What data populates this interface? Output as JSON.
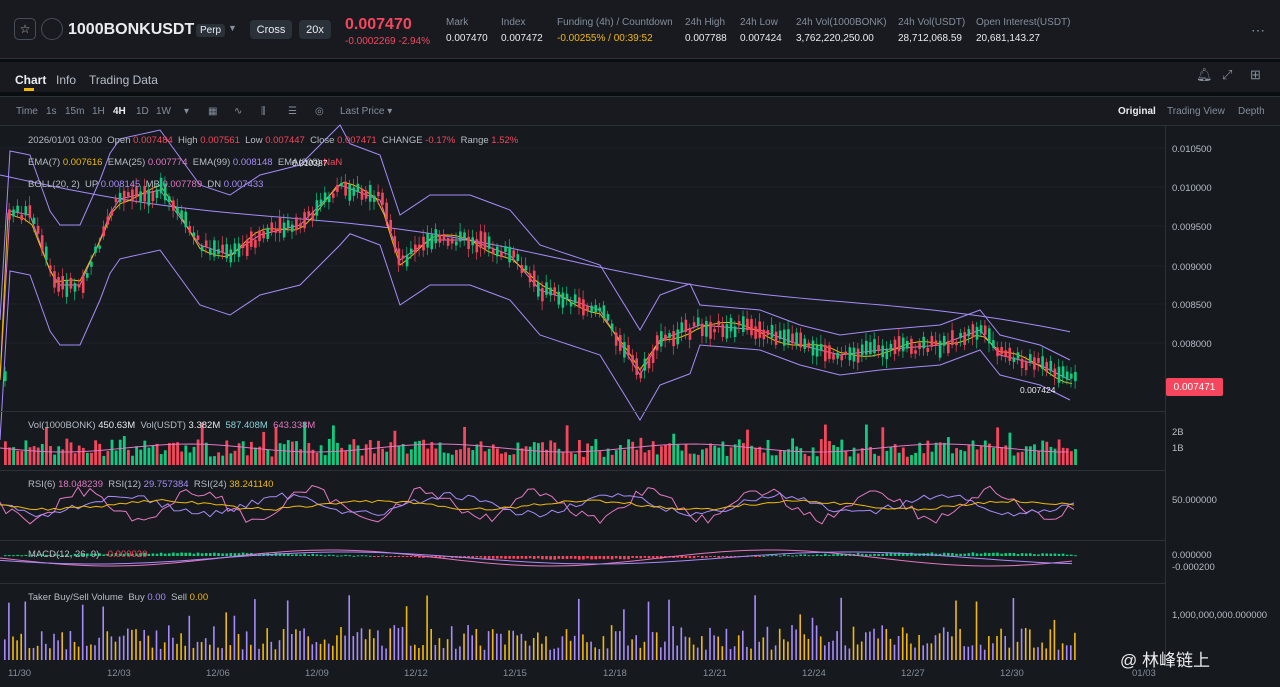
{
  "header": {
    "symbol": "1000BONKUSDT",
    "contract_type": "Perp",
    "margin_mode": "Cross",
    "leverage": "20x",
    "last_price": "0.007470",
    "change": "-0.0002269 -2.94%",
    "stats": [
      {
        "label": "Mark",
        "value": "0.007470"
      },
      {
        "label": "Index",
        "value": "0.007472"
      },
      {
        "label": "Funding (4h) / Countdown",
        "value": "-0.00255% / 00:39:52"
      },
      {
        "label": "24h High",
        "value": "0.007788"
      },
      {
        "label": "24h Low",
        "value": "0.007424"
      },
      {
        "label": "24h Vol(1000BONK)",
        "value": "3,762,220,250.00"
      },
      {
        "label": "24h Vol(USDT)",
        "value": "28,712,068.59"
      },
      {
        "label": "Open Interest(USDT)",
        "value": "20,681,143.27"
      }
    ]
  },
  "tabs": [
    "Chart",
    "Info",
    "Trading Data"
  ],
  "toolbar": {
    "label": "Time",
    "intervals": [
      "1s",
      "15m",
      "1H",
      "4H",
      "1D",
      "1W"
    ],
    "active_interval": "4H",
    "price_type": "Last Price",
    "views": [
      "Original",
      "Trading View",
      "Depth"
    ],
    "active_view": "Original"
  },
  "ohlc": {
    "date": "2026/01/01 03:00",
    "open_label": "Open",
    "open": "0.007484",
    "high_label": "High",
    "high": "0.007561",
    "low_label": "Low",
    "low": "0.007447",
    "close_label": "Close",
    "close": "0.007471",
    "change_label": "CHANGE",
    "change": "-0.17%",
    "range_label": "Range",
    "range": "1.52%"
  },
  "ema": {
    "ema7_label": "EMA(7)",
    "ema7": "0.007616",
    "ema25_label": "EMA(25)",
    "ema25": "0.007774",
    "ema99_label": "EMA(99)",
    "ema99": "0.008148",
    "ema200_label": "EMA(200)",
    "ema200": "NaN"
  },
  "boll": {
    "label": "BOLL(20, 2)",
    "up_label": "UP",
    "up": "0.008145",
    "mb_label": "MB",
    "mb": "0.007789",
    "dn_label": "DN",
    "dn": "0.007433"
  },
  "volume": {
    "label": "Vol(1000BONK)",
    "value": "450.63M",
    "usdt_label": "Vol(USDT)",
    "usdt": "3.382M",
    "ma1": "587.408M",
    "ma2": "643.338M",
    "axis": [
      "2B",
      "1B"
    ]
  },
  "rsi": {
    "rsi6_label": "RSI(6)",
    "rsi6": "18.048239",
    "rsi12_label": "RSI(12)",
    "rsi12": "29.757384",
    "rsi24_label": "RSI(24)",
    "rsi24": "38.241140",
    "axis": "50.000000"
  },
  "macd": {
    "label": "MACD(12, 26, 9)",
    "value": "-0.000020",
    "axis": [
      "0.000000",
      "-0.000200"
    ]
  },
  "taker": {
    "label": "Taker Buy/Sell Volume",
    "buy_label": "Buy",
    "buy": "0.00",
    "sell_label": "Sell",
    "sell": "0.00",
    "axis": "1,000,000,000.000000"
  },
  "price_axis": [
    "0.010500",
    "0.010000",
    "0.009500",
    "0.009000",
    "0.008500",
    "0.008000"
  ],
  "current_price_tag": "0.007471",
  "high_marker": "0.010387",
  "low_marker": "0.007424",
  "date_axis": [
    "11/30",
    "12/03",
    "12/06",
    "12/09",
    "12/12",
    "12/15",
    "12/18",
    "12/21",
    "12/24",
    "12/27",
    "12/30",
    "01/03"
  ],
  "watermark": "@ 林峰链上",
  "colors": {
    "up": "#0ecb81",
    "down": "#f6465d",
    "accent": "#f0b90b",
    "boll": "#a78bfa"
  }
}
